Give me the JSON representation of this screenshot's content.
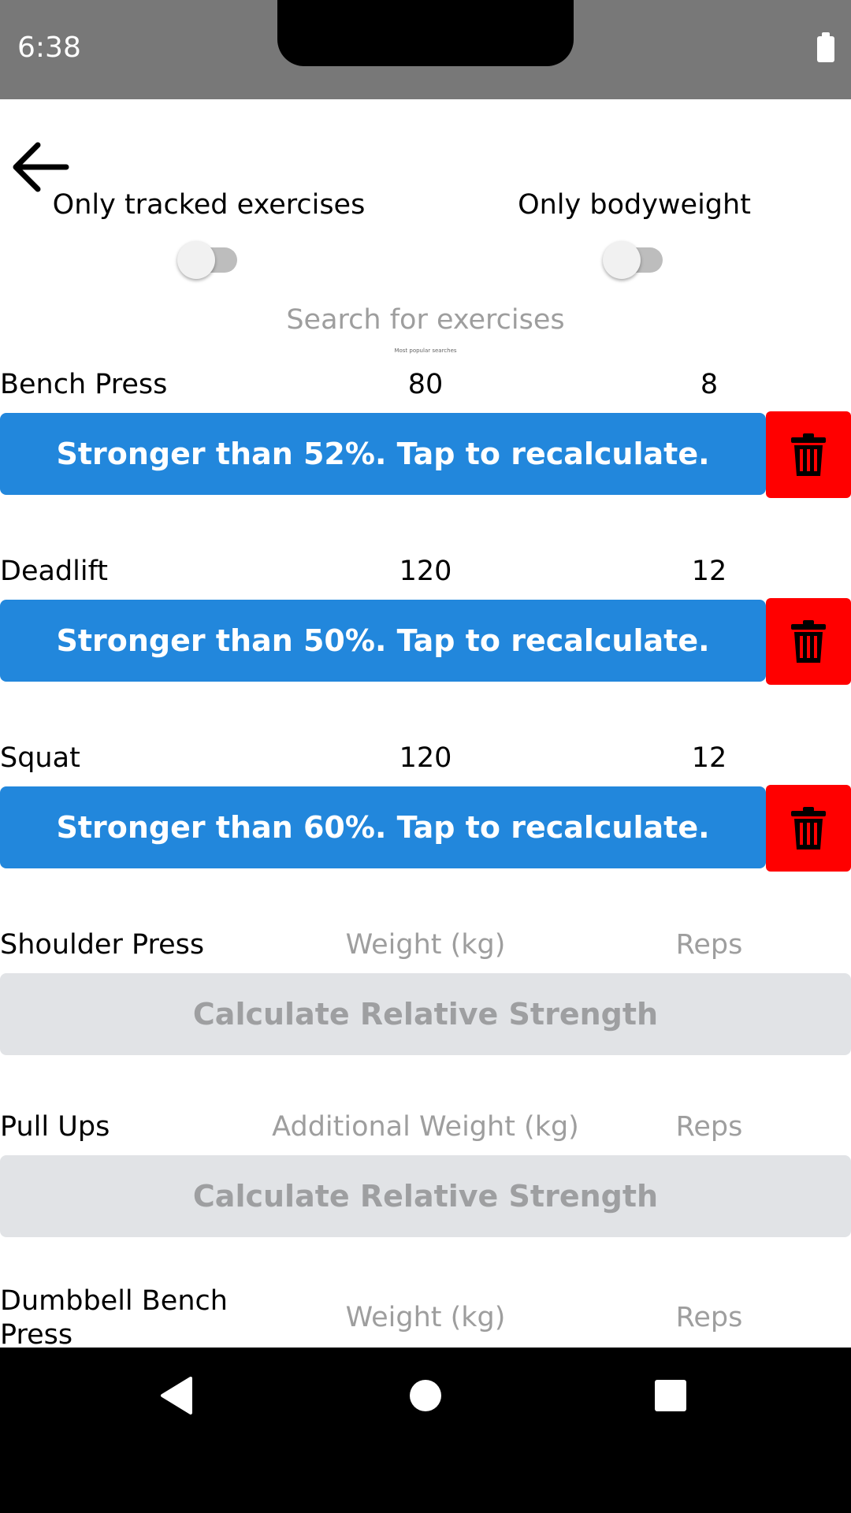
{
  "status_bar": {
    "time": "6:38"
  },
  "filters": {
    "tracked_label": "Only tracked exercises",
    "tracked_on": false,
    "bodyweight_label": "Only bodyweight",
    "bodyweight_on": false
  },
  "search": {
    "placeholder": "Search for exercises",
    "popular_label": "Most popular searches"
  },
  "exercises": [
    {
      "name": "Bench Press",
      "weight": "80",
      "reps": "8",
      "result": "Stronger than 52%. Tap to recalculate."
    },
    {
      "name": "Deadlift",
      "weight": "120",
      "reps": "12",
      "result": "Stronger than 50%. Tap to recalculate."
    },
    {
      "name": "Squat",
      "weight": "120",
      "reps": "12",
      "result": "Stronger than 60%. Tap to recalculate."
    },
    {
      "name": "Shoulder Press",
      "weight_placeholder": "Weight (kg)",
      "reps_placeholder": "Reps",
      "button": "Calculate Relative Strength"
    },
    {
      "name": "Pull Ups",
      "weight_placeholder": "Additional Weight (kg)",
      "reps_placeholder": "Reps",
      "button": "Calculate Relative Strength"
    },
    {
      "name": "Dumbbell Bench Press",
      "weight_placeholder": "Weight (kg)",
      "reps_placeholder": "Reps"
    }
  ],
  "colors": {
    "status_bar": "#787878",
    "primary_button": "#2287dc",
    "delete_button": "#ff0000",
    "disabled_button": "#e1e3e6",
    "placeholder": "#9e9e9e"
  },
  "icons": {
    "back": "arrow-left-icon",
    "delete": "trash-icon",
    "nav_back": "triangle-back-icon",
    "nav_home": "circle-home-icon",
    "nav_recents": "square-recents-icon"
  }
}
